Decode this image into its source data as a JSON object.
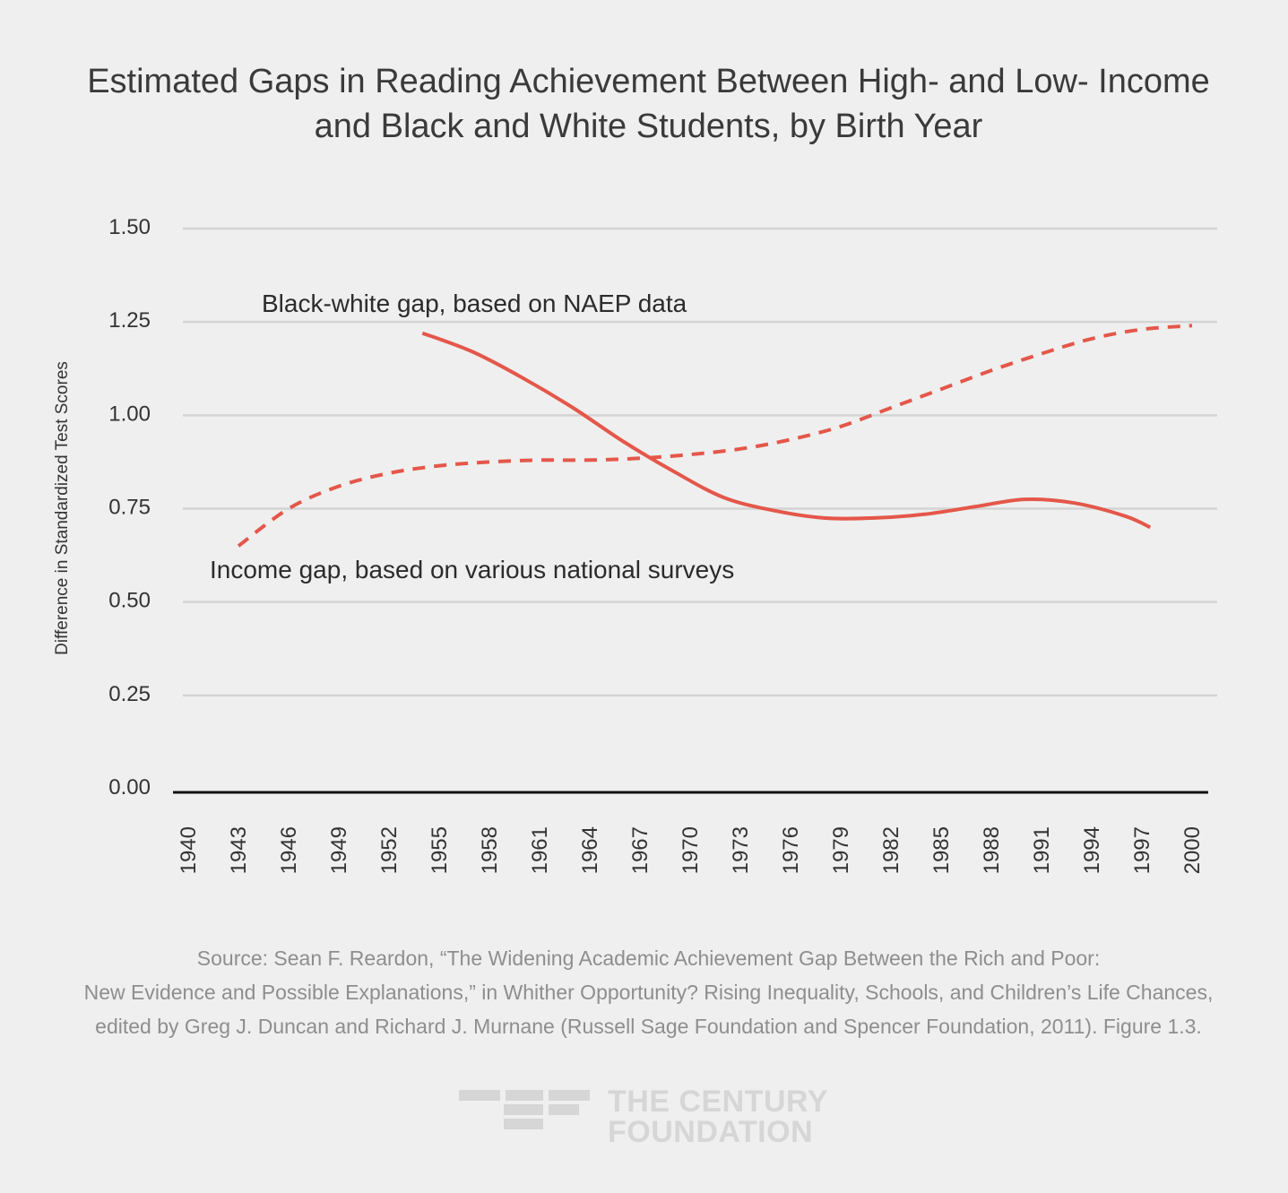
{
  "title_lines": [
    "Estimated Gaps in Reading Achievement Between High- and Low- Income",
    "and Black and White Students, by Birth Year"
  ],
  "colors": {
    "series": "#e4574a",
    "grid": "#d4d4d4",
    "axis": "#111111",
    "background": "#efefef"
  },
  "chart_data": {
    "type": "line",
    "title": "Estimated Gaps in Reading Achievement Between High- and Low- Income and Black and White Students, by Birth Year",
    "xlabel": "",
    "ylabel": "Difference in Standardized Test Scores",
    "xlim": [
      1940,
      2000
    ],
    "ylim": [
      0,
      1.5
    ],
    "grid": true,
    "x_ticks": [
      "1940",
      "1943",
      "1946",
      "1949",
      "1952",
      "1955",
      "1958",
      "1961",
      "1964",
      "1967",
      "1970",
      "1973",
      "1976",
      "1979",
      "1982",
      "1985",
      "1988",
      "1991",
      "1994",
      "1997",
      "2000"
    ],
    "y_ticks": [
      "0.00",
      "0.25",
      "0.50",
      "0.75",
      "1.00",
      "1.25",
      "1.50"
    ],
    "series": [
      {
        "name": "Black-white gap, based on NAEP data",
        "style": "solid",
        "x": [
          1954,
          1957,
          1960,
          1963,
          1966,
          1969,
          1972,
          1975,
          1978,
          1981,
          1984,
          1987,
          1990,
          1993,
          1996,
          1997.5
        ],
        "y": [
          1.22,
          1.17,
          1.1,
          1.02,
          0.93,
          0.85,
          0.78,
          0.745,
          0.725,
          0.725,
          0.735,
          0.755,
          0.775,
          0.765,
          0.73,
          0.7
        ]
      },
      {
        "name": "Income gap, based on various national surveys",
        "style": "dashed",
        "x": [
          1943,
          1946,
          1949,
          1952,
          1955,
          1958,
          1961,
          1964,
          1967,
          1970,
          1973,
          1976,
          1979,
          1982,
          1985,
          1988,
          1991,
          1994,
          1997,
          2000
        ],
        "y": [
          0.65,
          0.75,
          0.81,
          0.845,
          0.865,
          0.875,
          0.88,
          0.88,
          0.885,
          0.895,
          0.91,
          0.935,
          0.97,
          1.02,
          1.07,
          1.12,
          1.165,
          1.205,
          1.23,
          1.24
        ]
      }
    ]
  },
  "source_lines": [
    "Source: Sean F. Reardon, “The Widening Academic Achievement Gap Between the Rich and Poor:",
    "New Evidence and Possible Explanations,” in Whither Opportunity? Rising Inequality, Schools, and Children’s Life Chances,",
    "edited by Greg J. Duncan and Richard J. Murnane (Russell Sage Foundation and Spencer Foundation, 2011). Figure 1.3."
  ],
  "brand": {
    "line1": "THE CENTURY",
    "line2": "FOUNDATION"
  }
}
